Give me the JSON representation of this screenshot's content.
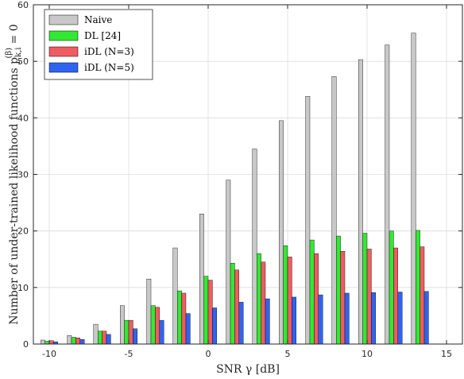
{
  "chart_data": {
    "type": "bar",
    "x_tick_labels": [
      "-10",
      "-5",
      "0",
      "5",
      "10",
      "15"
    ],
    "x_tick_values": [
      -10,
      -5,
      0,
      5,
      10,
      15
    ],
    "y_tick_labels": [
      "0",
      "10",
      "20",
      "30",
      "40",
      "50",
      "60"
    ],
    "y_tick_values": [
      0,
      10,
      20,
      30,
      40,
      50,
      60
    ],
    "categories": [
      -10,
      -8.33,
      -6.67,
      -5,
      -3.33,
      -1.67,
      0,
      1.67,
      3.33,
      5,
      6.67,
      8.33,
      10,
      11.67,
      13.33,
      15
    ],
    "xlim": [
      -11,
      16
    ],
    "ylim": [
      0,
      60
    ],
    "xlabel": "SNR γ [dB]",
    "ylabel_prefix": "Number of under-trained likelihood functions p",
    "ylabel_sub": "k,i",
    "ylabel_sup": "(β)",
    "ylabel_suffix": " = 0",
    "grid": true,
    "legend_position": "top-left",
    "series": [
      {
        "name": "Naive",
        "color": "#c8c8c8",
        "values": [
          0.7,
          1.5,
          3.5,
          6.8,
          11.5,
          17.0,
          23.0,
          29.0,
          34.5,
          39.5,
          43.8,
          47.3,
          50.3,
          52.9,
          55.0,
          null
        ]
      },
      {
        "name": "DL [24]",
        "color": "#33e833",
        "values": [
          0.5,
          1.2,
          2.3,
          4.2,
          6.8,
          9.4,
          12.0,
          14.3,
          16.0,
          17.4,
          18.4,
          19.1,
          19.6,
          20.0,
          20.1,
          null
        ]
      },
      {
        "name": "iDL (N=3)",
        "color": "#ef5c62",
        "values": [
          0.6,
          1.1,
          2.3,
          4.2,
          6.5,
          9.0,
          11.3,
          13.1,
          14.5,
          15.4,
          16.0,
          16.4,
          16.8,
          17.0,
          17.2,
          null
        ]
      },
      {
        "name": "iDL (N=5)",
        "color": "#2f64f0",
        "values": [
          0.4,
          0.8,
          1.7,
          2.7,
          4.2,
          5.4,
          6.4,
          7.4,
          8.0,
          8.3,
          8.7,
          9.0,
          9.1,
          9.2,
          9.3,
          null
        ]
      }
    ]
  }
}
